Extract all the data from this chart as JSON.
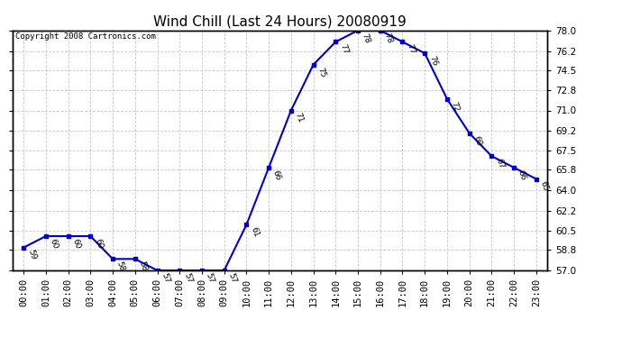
{
  "title": "Wind Chill (Last 24 Hours) 20080919",
  "copyright": "Copyright 2008 Cartronics.com",
  "hours": [
    0,
    1,
    2,
    3,
    4,
    5,
    6,
    7,
    8,
    9,
    10,
    11,
    12,
    13,
    14,
    15,
    16,
    17,
    18,
    19,
    20,
    21,
    22,
    23
  ],
  "values": [
    59,
    60,
    60,
    60,
    58,
    58,
    57,
    57,
    57,
    57,
    61,
    66,
    71,
    75,
    77,
    78,
    78,
    77,
    76,
    72,
    69,
    67,
    66,
    65
  ],
  "ylim": [
    57.0,
    78.0
  ],
  "yticks": [
    57.0,
    58.8,
    60.5,
    62.2,
    64.0,
    65.8,
    67.5,
    69.2,
    71.0,
    72.8,
    74.5,
    76.2,
    78.0
  ],
  "line_color": "#0000cc",
  "marker_color": "#0000cc",
  "bg_color": "#ffffff",
  "plot_bg_color": "#ffffff",
  "grid_color": "#c8c8c8",
  "title_fontsize": 11,
  "label_fontsize": 7.5,
  "copyright_fontsize": 6.5,
  "annotation_fontsize": 6.5
}
